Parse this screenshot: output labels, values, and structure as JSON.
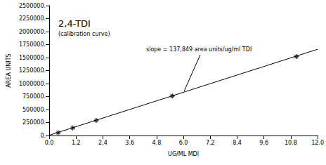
{
  "chart_data": {
    "type": "line",
    "title": "2,4-TDI",
    "subtitle": "(calibration curve)",
    "annotation": "slope = 137,849 area units/ug/ml TDI",
    "x_label": "UG/ML MDI",
    "y_label": "AREA UNITS",
    "series": [
      {
        "type": "line",
        "color": "#000000",
        "line_style": "solid",
        "x": [
          0,
          12
        ],
        "values": [
          5000,
          1660000
        ]
      },
      {
        "type": "scatter",
        "color": "#000000",
        "marker": "asterisk",
        "x": [
          0.4,
          1.05,
          2.1,
          5.5,
          11.05
        ],
        "values": [
          55000,
          145000,
          290000,
          760000,
          1520000
        ]
      }
    ],
    "xlim": [
      0,
      12
    ],
    "xticks": [
      {
        "value": 0,
        "label": "0.0"
      },
      {
        "value": 1.2,
        "label": "1.2"
      },
      {
        "value": 2.4,
        "label": "2.4"
      },
      {
        "value": 3.6,
        "label": "3.6"
      },
      {
        "value": 4.8,
        "label": "4.8"
      },
      {
        "value": 6,
        "label": "6.0"
      },
      {
        "value": 7.2,
        "label": "7.2"
      },
      {
        "value": 8.4,
        "label": "8.4"
      },
      {
        "value": 9.6,
        "label": "9.6"
      },
      {
        "value": 10.8,
        "label": "10.8"
      },
      {
        "value": 12,
        "label": "12.0"
      }
    ],
    "ylim": [
      0,
      2500000
    ],
    "yticks": [
      {
        "value": 0,
        "label": "0."
      },
      {
        "value": 250000,
        "label": "250000."
      },
      {
        "value": 500000,
        "label": "500000."
      },
      {
        "value": 750000,
        "label": "750000."
      },
      {
        "value": 1000000,
        "label": "1000000."
      },
      {
        "value": 1250000,
        "label": "1250000."
      },
      {
        "value": 1500000,
        "label": "1500000."
      },
      {
        "value": 1750000,
        "label": "1750000."
      },
      {
        "value": 2000000,
        "label": "2000000."
      },
      {
        "value": 2250000,
        "label": "2250000."
      },
      {
        "value": 2500000,
        "label": "2500000."
      }
    ],
    "grid": false
  }
}
